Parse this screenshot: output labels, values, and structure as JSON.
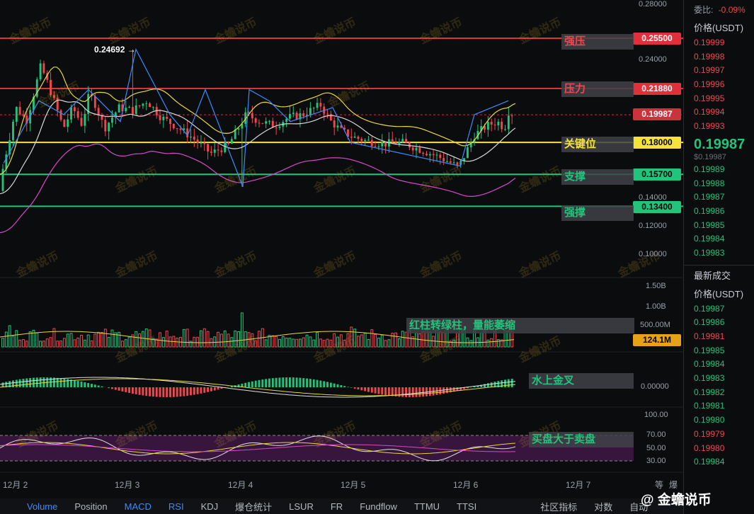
{
  "colors": {
    "up": "#21c47a",
    "down": "#f0474f",
    "accent": "#3d8bfd",
    "yellow": "#f5e33b",
    "bg": "#0b0c0e"
  },
  "price_axis": [
    "0.28000",
    "0.24000",
    "0.20000",
    "0.14000",
    "0.12000",
    "0.10000"
  ],
  "volume_axis": [
    "1.50B",
    "1.00B",
    "500.00M"
  ],
  "macd_axis": [
    "0.00000"
  ],
  "rsi_axis": [
    "100.00",
    "70.00",
    "50.00",
    "30.00"
  ],
  "level_tags": [
    {
      "value": "0.25500",
      "color": "#e0303a"
    },
    {
      "value": "0.21880",
      "color": "#e0303a"
    },
    {
      "value": "0.19987",
      "color": "#c9343c"
    },
    {
      "value": "0.18000",
      "color": "#f5e33b"
    },
    {
      "value": "0.15700",
      "color": "#21c47a"
    },
    {
      "value": "0.13400",
      "color": "#21c47a"
    }
  ],
  "volume_tag": "124.1M",
  "high_label": "0.24692 →",
  "annotations": {
    "strong_resistance": "强压",
    "resistance": "压力",
    "key_level": "关键位",
    "support": "支撑",
    "strong_support": "强撑",
    "volume_note": "红柱转绿柱，量能萎缩",
    "macd_note": "水上金叉",
    "rsi_note": "买盘大于卖盘"
  },
  "dates": [
    "12月 2",
    "12月 3",
    "12月 4",
    "12月 5",
    "12月 6",
    "12月 7"
  ],
  "bottom_tabs": [
    {
      "label": "Volume",
      "active": true
    },
    {
      "label": "Position",
      "active": false
    },
    {
      "label": "MACD",
      "active": true
    },
    {
      "label": "RSI",
      "active": true
    },
    {
      "label": "KDJ",
      "active": false
    },
    {
      "label": "爆仓统计",
      "active": false
    },
    {
      "label": "LSUR",
      "active": false
    },
    {
      "label": "FR",
      "active": false
    },
    {
      "label": "Fundflow",
      "active": false
    },
    {
      "label": "TTMU",
      "active": false
    },
    {
      "label": "TTSI",
      "active": false
    }
  ],
  "community_label": "社区指标",
  "pair_label": "对数",
  "auto_label": "自动",
  "right_panel": {
    "commission_label": "委比:",
    "commission_value": "-0.09%",
    "price_header": "价格(USDT)",
    "asks": [
      "0.19999",
      "0.19998",
      "0.19997",
      "0.19996",
      "0.19995",
      "0.19994",
      "0.19993"
    ],
    "last_price": "0.19987",
    "last_price_usd": "$0.19987",
    "bids": [
      "0.19989",
      "0.19988",
      "0.19987",
      "0.19986",
      "0.19985",
      "0.19984",
      "0.19983"
    ],
    "trades_header": "最新成交",
    "trades_price_header": "价格(USDT)",
    "trades": [
      {
        "price": "0.19987",
        "side": "buy"
      },
      {
        "price": "0.19986",
        "side": "buy"
      },
      {
        "price": "0.19981",
        "side": "sell"
      },
      {
        "price": "0.19985",
        "side": "buy"
      },
      {
        "price": "0.19984",
        "side": "buy"
      },
      {
        "price": "0.19983",
        "side": "buy"
      },
      {
        "price": "0.19982",
        "side": "buy"
      },
      {
        "price": "0.19981",
        "side": "buy"
      },
      {
        "price": "0.19980",
        "side": "buy"
      },
      {
        "price": "0.19979",
        "side": "sell"
      },
      {
        "price": "0.19980",
        "side": "sell"
      },
      {
        "price": "0.19984",
        "side": "buy"
      }
    ]
  },
  "watermark": "金蟾说币",
  "logo_text": "@ 金蟾说币",
  "tab_prefix": "等",
  "tab_prefix2": "爆"
}
